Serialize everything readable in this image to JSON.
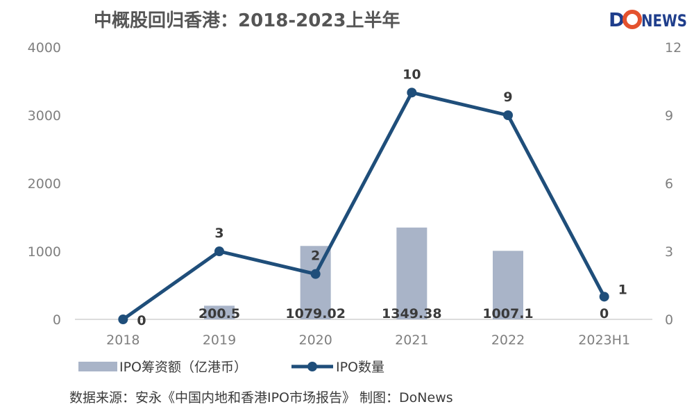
{
  "title": "中概股回归香港：2018-2023上半年",
  "logo": {
    "text": "DONEWS",
    "colors": [
      "#1f3e8c",
      "#e4522e"
    ]
  },
  "source": "数据来源：安永《中国内地和香港IPO市场报告》   制图：DoNews",
  "colors": {
    "bar": "#a9b4c8",
    "line": "#1f4e7a",
    "axis": "#d0d0d0",
    "tick": "#7f7f7f"
  },
  "chart_data": {
    "type": "bar",
    "categories": [
      "2018",
      "2019",
      "2020",
      "2021",
      "2022",
      "2023H1"
    ],
    "series": [
      {
        "name": "IPO筹资额（亿港币）",
        "type": "bar",
        "axis": "left",
        "values": [
          0,
          200.5,
          1079.02,
          1349.38,
          1007.1,
          0
        ],
        "labels": [
          "",
          "200.5",
          "1079.02",
          "1349.38",
          "1007.1",
          "0"
        ]
      },
      {
        "name": "IPO数量",
        "type": "line",
        "axis": "right",
        "values": [
          0,
          3,
          2,
          10,
          9,
          1
        ],
        "labels": [
          "0",
          "3",
          "2",
          "10",
          "9",
          "1"
        ]
      }
    ],
    "y_left": {
      "ticks": [
        "0",
        "1000",
        "2000",
        "3000",
        "4000"
      ],
      "range": [
        0,
        4000
      ]
    },
    "y_right": {
      "ticks": [
        "0",
        "3",
        "6",
        "9",
        "12"
      ],
      "range": [
        0,
        12
      ]
    },
    "legend": "bottom-left",
    "grid": false
  }
}
